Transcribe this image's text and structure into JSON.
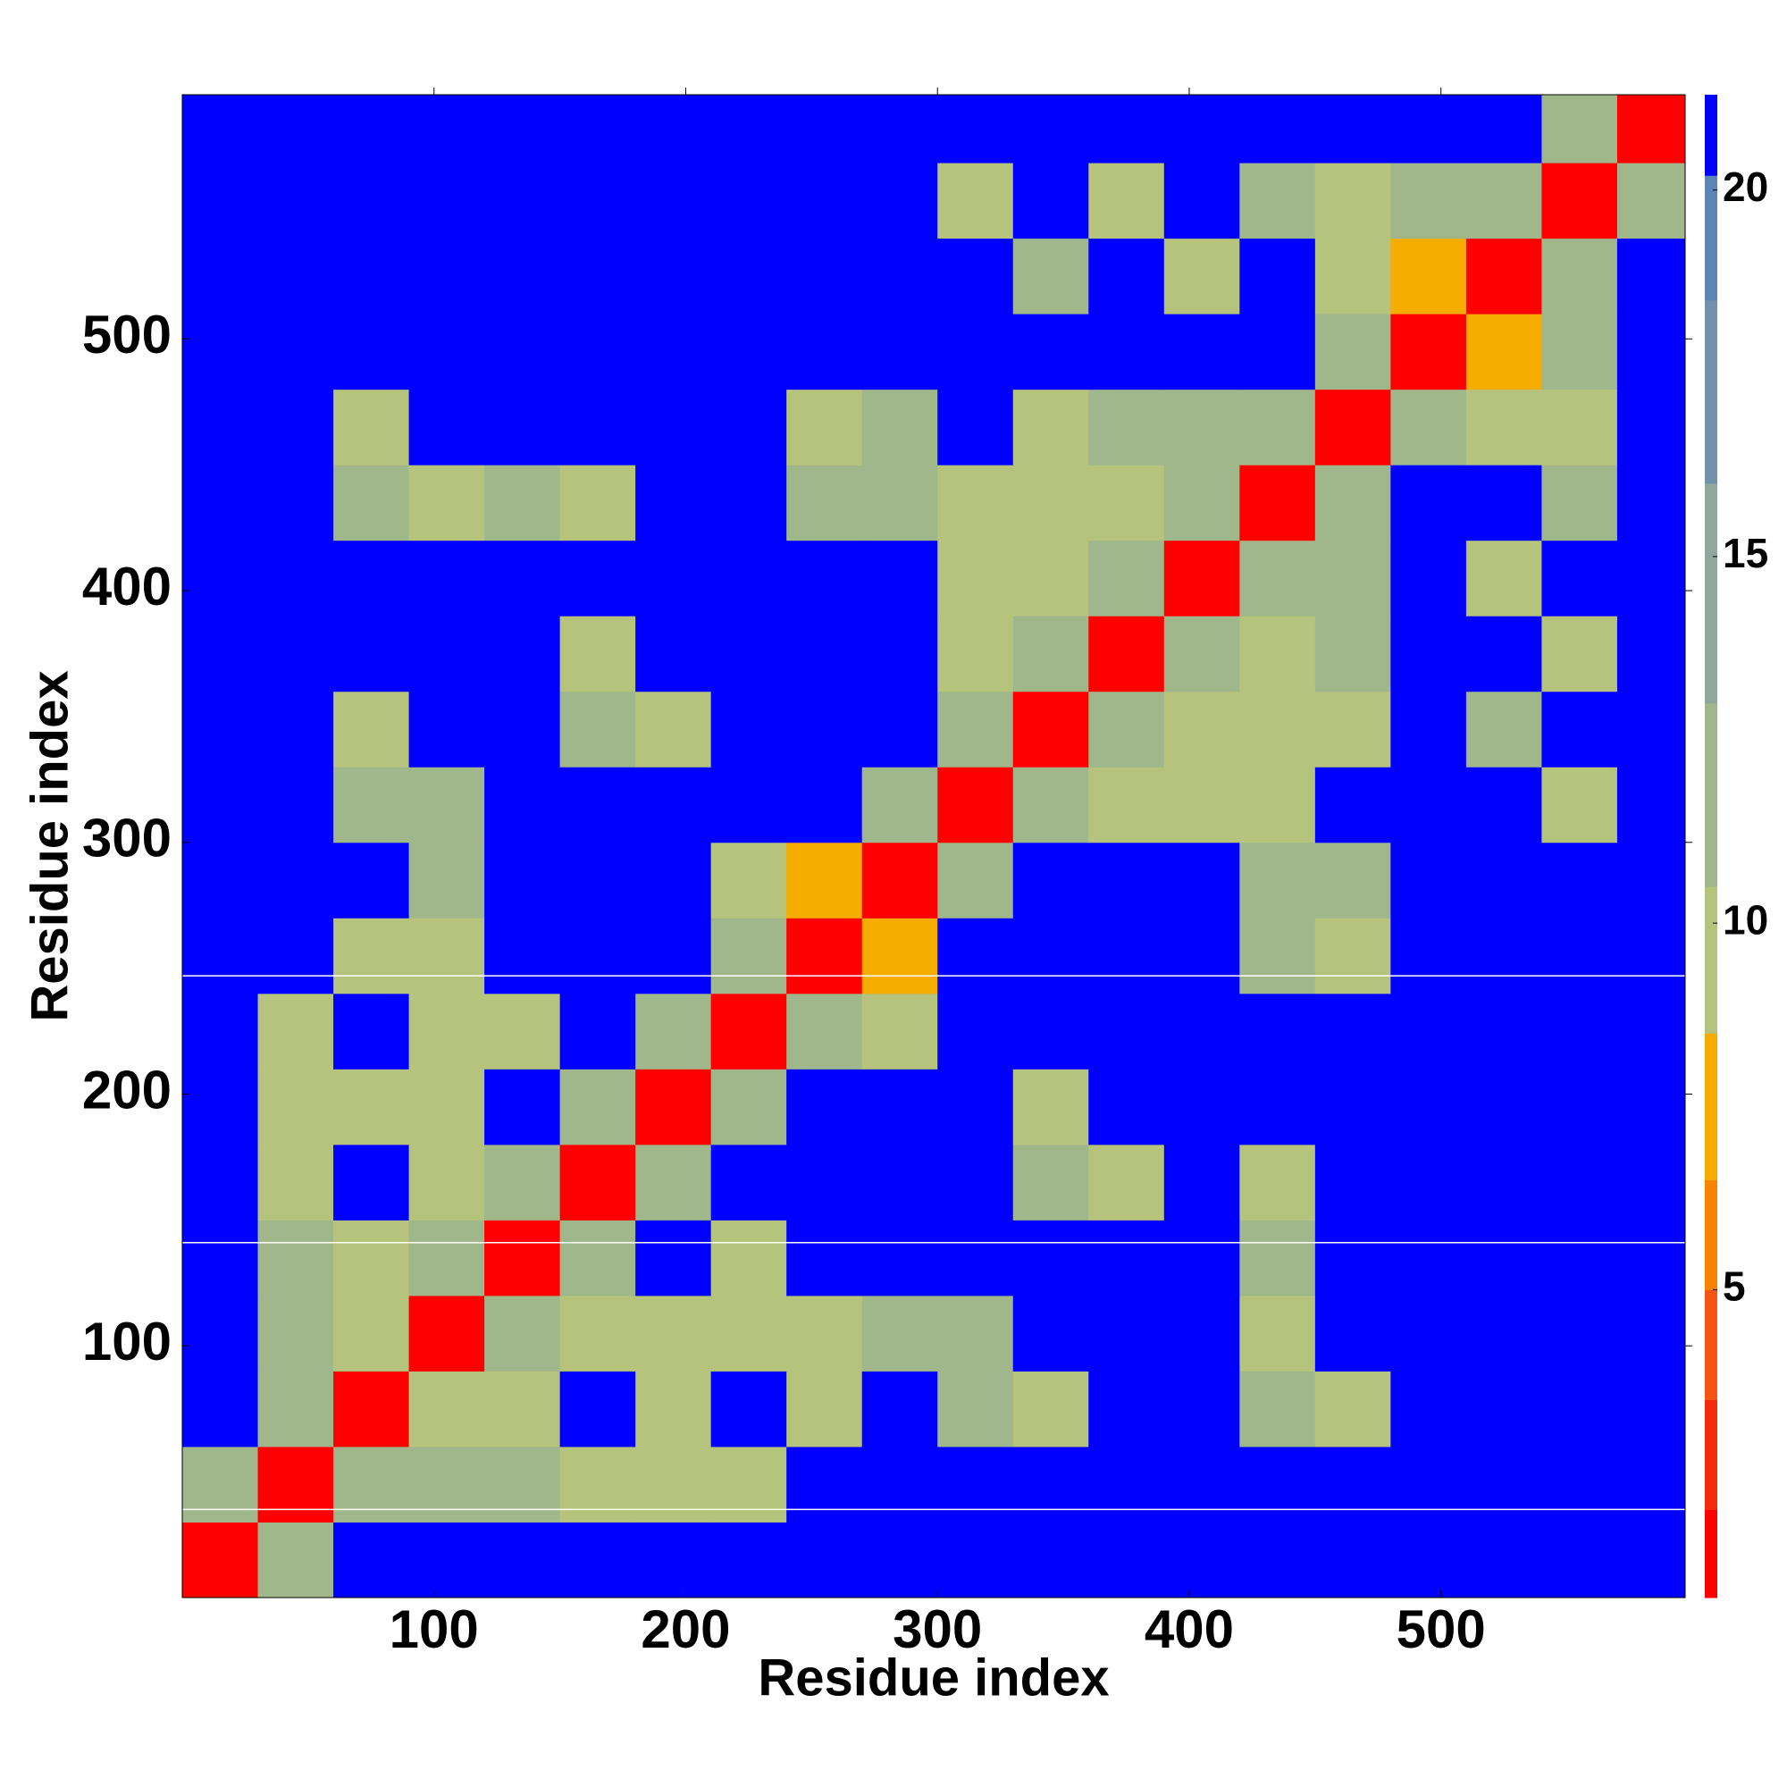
{
  "chart_data": {
    "type": "heatmap",
    "x_label": "Residue index",
    "y_label": "Residue index",
    "x": [
      15,
      45,
      75,
      105,
      135,
      165,
      195,
      225,
      255,
      285,
      315,
      345,
      375,
      405,
      435,
      465,
      495,
      525,
      555,
      585
    ],
    "y": [
      15,
      45,
      75,
      105,
      135,
      165,
      195,
      225,
      255,
      285,
      315,
      345,
      375,
      405,
      435,
      465,
      495,
      525,
      555,
      585
    ],
    "values": [
      [
        2,
        13,
        21,
        21,
        21,
        21,
        21,
        21,
        21,
        21,
        21,
        21,
        21,
        21,
        21,
        21,
        21,
        21,
        21,
        21
      ],
      [
        13,
        2,
        13,
        11,
        11,
        9,
        10,
        9,
        21,
        21,
        21,
        21,
        21,
        21,
        21,
        21,
        21,
        21,
        21,
        21
      ],
      [
        21,
        13,
        2,
        9,
        10,
        21,
        9,
        21,
        9,
        21,
        12,
        10,
        21,
        21,
        12,
        9,
        21,
        21,
        21,
        21
      ],
      [
        21,
        11,
        9,
        2,
        13,
        10,
        9,
        10,
        9,
        12,
        11,
        21,
        21,
        21,
        10,
        21,
        21,
        21,
        21,
        21
      ],
      [
        21,
        11,
        10,
        13,
        2,
        13,
        21,
        10,
        21,
        21,
        21,
        21,
        21,
        21,
        12,
        21,
        21,
        21,
        21,
        21
      ],
      [
        21,
        9,
        21,
        10,
        13,
        2,
        13,
        21,
        21,
        21,
        21,
        12,
        10,
        21,
        10,
        21,
        21,
        21,
        21,
        21
      ],
      [
        21,
        10,
        9,
        9,
        21,
        13,
        2,
        13,
        21,
        21,
        21,
        9,
        21,
        21,
        21,
        21,
        21,
        21,
        21,
        21
      ],
      [
        21,
        9,
        21,
        10,
        10,
        21,
        13,
        2,
        13,
        10,
        21,
        21,
        21,
        21,
        21,
        21,
        21,
        21,
        21,
        21
      ],
      [
        21,
        21,
        9,
        9,
        21,
        21,
        21,
        13,
        2,
        7,
        21,
        21,
        21,
        21,
        12,
        10,
        21,
        21,
        21,
        21
      ],
      [
        21,
        21,
        21,
        12,
        21,
        21,
        21,
        10,
        7,
        2,
        13,
        21,
        21,
        21,
        11,
        12,
        21,
        21,
        21,
        21
      ],
      [
        21,
        21,
        12,
        11,
        21,
        21,
        21,
        21,
        21,
        13,
        2,
        13,
        10,
        9,
        10,
        21,
        21,
        21,
        9,
        21
      ],
      [
        21,
        21,
        10,
        21,
        21,
        12,
        9,
        21,
        21,
        21,
        13,
        2,
        13,
        10,
        10,
        9,
        21,
        11,
        21,
        21
      ],
      [
        21,
        21,
        21,
        21,
        21,
        10,
        21,
        21,
        21,
        21,
        10,
        13,
        2,
        13,
        9,
        11,
        21,
        21,
        9,
        21
      ],
      [
        21,
        21,
        21,
        21,
        21,
        21,
        21,
        21,
        21,
        21,
        9,
        10,
        13,
        2,
        13,
        11,
        21,
        10,
        21,
        21
      ],
      [
        21,
        21,
        12,
        10,
        12,
        10,
        21,
        21,
        12,
        11,
        10,
        10,
        9,
        13,
        2,
        13,
        21,
        21,
        12,
        21
      ],
      [
        21,
        21,
        9,
        21,
        21,
        21,
        21,
        21,
        10,
        12,
        21,
        9,
        11,
        11,
        13,
        2,
        13,
        10,
        9,
        21
      ],
      [
        21,
        21,
        21,
        21,
        21,
        21,
        21,
        21,
        21,
        21,
        21,
        21,
        21,
        21,
        21,
        13,
        2,
        8,
        11,
        21
      ],
      [
        21,
        21,
        21,
        21,
        21,
        21,
        21,
        21,
        21,
        21,
        21,
        11,
        21,
        10,
        21,
        10,
        8,
        2,
        13,
        21
      ],
      [
        21,
        21,
        21,
        21,
        21,
        21,
        21,
        21,
        21,
        21,
        9,
        21,
        9,
        21,
        12,
        9,
        11,
        13,
        2,
        13
      ],
      [
        21,
        21,
        21,
        21,
        21,
        21,
        21,
        21,
        21,
        21,
        21,
        21,
        21,
        21,
        21,
        21,
        21,
        21,
        13,
        2
      ]
    ],
    "xlim": [
      0,
      597
    ],
    "ylim": [
      0,
      597
    ],
    "xticks": [
      100,
      200,
      300,
      400,
      500
    ],
    "yticks": [
      100,
      200,
      300,
      400,
      500
    ],
    "hlines": [
      35,
      141,
      247
    ],
    "hline_color": "#ffffff",
    "zlim": [
      0.8,
      21.3
    ],
    "zticks": [
      5,
      10,
      15,
      20
    ],
    "levels": [
      0.8,
      2,
      3.5,
      5,
      6.5,
      8.5,
      10.5,
      13,
      16,
      18.5,
      20.2,
      21.3
    ],
    "colors": [
      "#ff0000",
      "#f52a0a",
      "#f45512",
      "#f88400",
      "#f7ad00",
      "#b5c37c",
      "#9fb78a",
      "#8ea99c",
      "#7092ac",
      "#5a85b6",
      "#0000ff"
    ]
  }
}
